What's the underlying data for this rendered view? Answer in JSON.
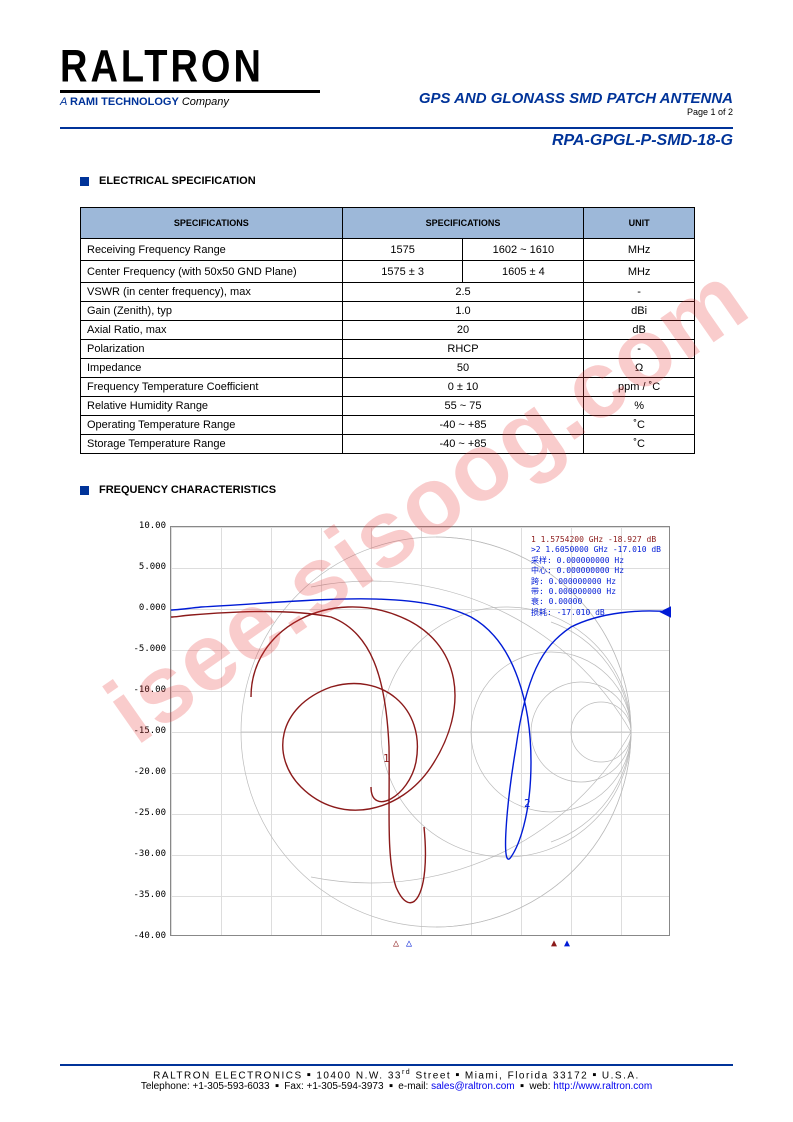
{
  "watermark": "isee.sisoog.com",
  "logo": {
    "name": "RALTRON",
    "tagline_prefix": "A ",
    "tagline_brand": "RAMI TECHNOLOGY",
    "tagline_suffix": " Company"
  },
  "header": {
    "doc_title": "GPS AND GLONASS SMD PATCH ANTENNA",
    "page": "Page 1 of 2",
    "part_number": "RPA-GPGL-P-SMD-18-G"
  },
  "sections": {
    "electrical": "ELECTRICAL SPECIFICATION",
    "freq_char": "FREQUENCY CHARACTERISTICS"
  },
  "spec_table": {
    "headers": [
      "SPECIFICATIONS",
      "SPECIFICATIONS",
      "UNIT"
    ],
    "rows": [
      {
        "label": "Receiving Frequency Range",
        "v1": "1575",
        "v2": "1602 ~ 1610",
        "unit": "MHz",
        "split": true
      },
      {
        "label": "Center Frequency (with 50x50 GND Plane)",
        "v1": "1575 ± 3",
        "v2": "1605 ± 4",
        "unit": "MHz",
        "split": true
      },
      {
        "label": "VSWR (in center frequency), max",
        "v": "2.5",
        "unit": "-"
      },
      {
        "label": "Gain (Zenith), typ",
        "v": "1.0",
        "unit": "dBi"
      },
      {
        "label": "Axial Ratio, max",
        "v": "20",
        "unit": "dB"
      },
      {
        "label": "Polarization",
        "v": "RHCP",
        "unit": "-"
      },
      {
        "label": "Impedance",
        "v": "50",
        "unit": "Ω"
      },
      {
        "label": "Frequency Temperature Coefficient",
        "v": "0 ± 10",
        "unit": "ppm / ˚C"
      },
      {
        "label": "Relative Humidity Range",
        "v": "55 ~ 75",
        "unit": "%"
      },
      {
        "label": "Operating Temperature Range",
        "v": "-40 ~ +85",
        "unit": "˚C"
      },
      {
        "label": "Storage Temperature Range",
        "v": "-40 ~ +85",
        "unit": "˚C"
      }
    ]
  },
  "chart": {
    "yticks": [
      "10.00",
      "5.000",
      "0.000",
      "-5.000",
      "-10.00",
      "-15.00",
      "-20.00",
      "-25.00",
      "-30.00",
      "-35.00",
      "-40.00"
    ],
    "legend_l1": "1  1.5754200 GHz -18.927 dB",
    "legend_l2": ">2 1.6050000 GHz -17.010 dB",
    "legend_meta1": "采样:  0.000000000 Hz",
    "legend_meta2": "中心:  0.000000000 Hz",
    "legend_meta3": "跨: 0.000000000 Hz",
    "legend_meta4": "带: 0.000000000 Hz",
    "legend_meta5": "衰: 0.00000",
    "legend_meta6": "损耗: -17.010 dB",
    "colors": {
      "trace1": "#8b1a1a",
      "trace2": "#001bd6",
      "grid": "#cccccc",
      "smith": "#bbbbbb"
    },
    "ylim": [
      -40,
      10
    ]
  },
  "footer": {
    "line1_company": "RALTRON ELECTRONICS",
    "line1_addr": "10400 N.W. 33",
    "line1_addr_sup": "rd",
    "line1_addr2": " Street",
    "line1_city": "Miami, Florida 33172",
    "line1_country": "U.S.A.",
    "line2_tel_label": "Telephone: ",
    "line2_tel": "+1-305-593-6033",
    "line2_fax_label": "Fax: ",
    "line2_fax": "+1-305-594-3973",
    "line2_email_label": "e-mail: ",
    "line2_email": "sales@raltron.com",
    "line2_web_label": "web: ",
    "line2_web": "http://www.raltron.com"
  }
}
